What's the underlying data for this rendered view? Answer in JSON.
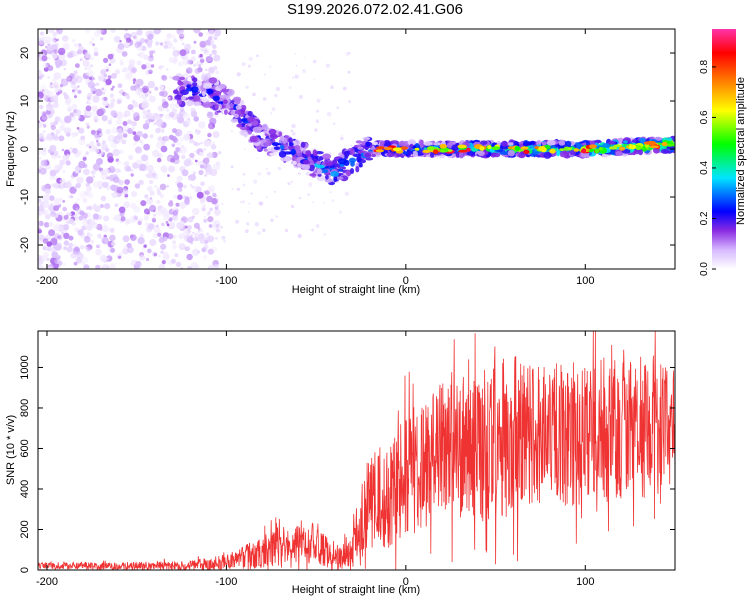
{
  "figure": {
    "title": "S199.2026.072.02.41.G06"
  },
  "colors": {
    "snr_line": "#ef3333",
    "colormap": [
      "#ffffff",
      "#d6b8ff",
      "#8a2be2",
      "#0000ff",
      "#00e5ff",
      "#00ff00",
      "#ffff00",
      "#ff8000",
      "#ff0000",
      "#ff33aa"
    ]
  },
  "chart_data": [
    {
      "type": "heatmap",
      "name": "spectrogram",
      "xlabel": "Height of straight line (km)",
      "ylabel": "Frequency (Hz)",
      "xlim": [
        -205,
        150
      ],
      "ylim": [
        -25,
        25
      ],
      "xticks": [
        -200,
        -100,
        0,
        100
      ],
      "yticks": [
        -20,
        -10,
        0,
        10,
        20
      ],
      "colorbar": {
        "label": "Normalized spectral amplitude",
        "range": [
          0,
          0.95
        ],
        "ticks": [
          "0.0",
          "0.2",
          "0.4",
          "0.6",
          "0.8"
        ]
      },
      "signal_track": [
        {
          "x": -125,
          "y": 12
        },
        {
          "x": -110,
          "y": 12
        },
        {
          "x": -100,
          "y": 10
        },
        {
          "x": -90,
          "y": 6
        },
        {
          "x": -80,
          "y": 2
        },
        {
          "x": -70,
          "y": 1
        },
        {
          "x": -60,
          "y": -1
        },
        {
          "x": -50,
          "y": -3
        },
        {
          "x": -40,
          "y": -5
        },
        {
          "x": -30,
          "y": -2
        },
        {
          "x": -20,
          "y": 0
        },
        {
          "x": 0,
          "y": 0
        },
        {
          "x": 50,
          "y": 0
        },
        {
          "x": 100,
          "y": 0
        },
        {
          "x": 150,
          "y": 1
        }
      ]
    },
    {
      "type": "line",
      "name": "snr",
      "xlabel": "Height of straight line (km)",
      "ylabel": "SNR (10 * v/v)",
      "xlim": [
        -205,
        150
      ],
      "ylim": [
        0,
        1180
      ],
      "xticks": [
        -200,
        -100,
        0,
        100
      ],
      "yticks": [
        0,
        200,
        400,
        600,
        800,
        1000
      ],
      "envelope": {
        "x": [
          -205,
          -150,
          -120,
          -100,
          -90,
          -80,
          -70,
          -60,
          -50,
          -40,
          -30,
          -28,
          -20,
          -10,
          0,
          10,
          20,
          30,
          40,
          50,
          60,
          70,
          80,
          90,
          100,
          110,
          120,
          130,
          140,
          150
        ],
        "mean": [
          20,
          20,
          20,
          40,
          60,
          90,
          120,
          140,
          130,
          60,
          70,
          220,
          330,
          400,
          470,
          530,
          570,
          580,
          610,
          640,
          660,
          660,
          650,
          680,
          660,
          690,
          710,
          670,
          690,
          700
        ],
        "amp": [
          15,
          20,
          25,
          40,
          60,
          80,
          100,
          110,
          100,
          60,
          80,
          150,
          250,
          300,
          320,
          330,
          350,
          370,
          380,
          400,
          400,
          390,
          370,
          370,
          360,
          370,
          360,
          350,
          330,
          320
        ]
      }
    }
  ]
}
